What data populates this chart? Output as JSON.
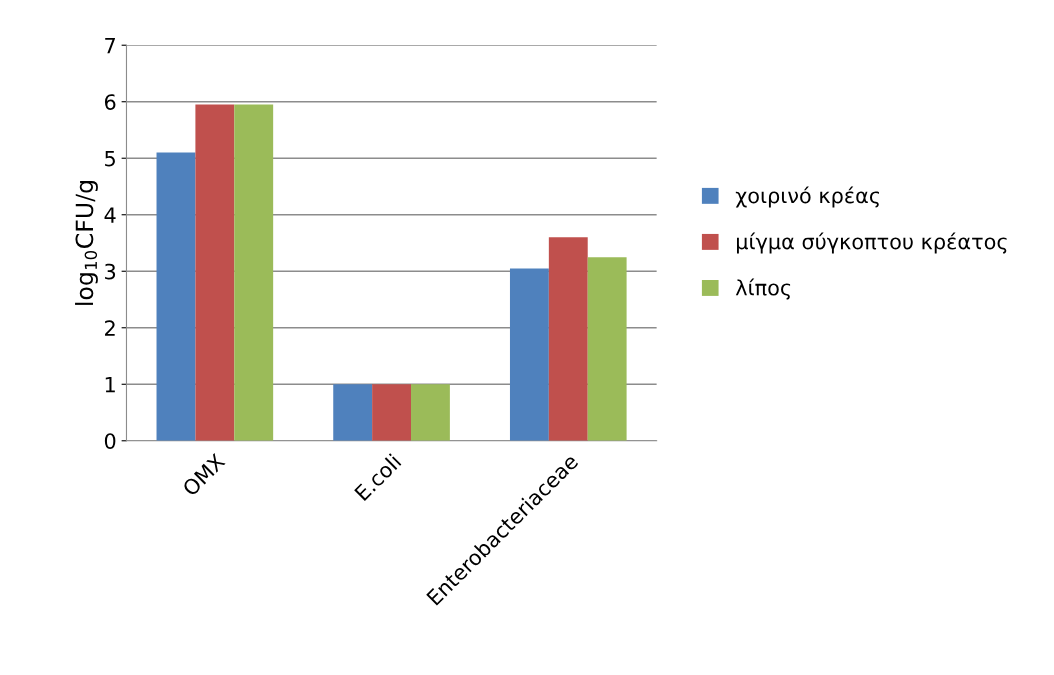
{
  "chart_data": {
    "type": "bar",
    "ylabel": "log$_{10}$CFU/g",
    "categories": [
      "ΟΜΧ",
      "E.coli",
      "Enterobacteriaceae"
    ],
    "series": [
      {
        "name": "χοιρινό κρέας",
        "color": "#4f81bd",
        "values": [
          5.1,
          1.0,
          3.05
        ]
      },
      {
        "name": "μίγμα σύγκοπτου κρέατος",
        "color": "#c0504d",
        "values": [
          5.95,
          1.0,
          3.6
        ]
      },
      {
        "name": "λίπος",
        "color": "#9bbb59",
        "values": [
          5.95,
          1.0,
          3.25
        ]
      }
    ],
    "ylim": [
      0,
      7
    ],
    "yticks": [
      0,
      1,
      2,
      3,
      4,
      5,
      6,
      7
    ],
    "grid": "y",
    "legend": "right"
  }
}
